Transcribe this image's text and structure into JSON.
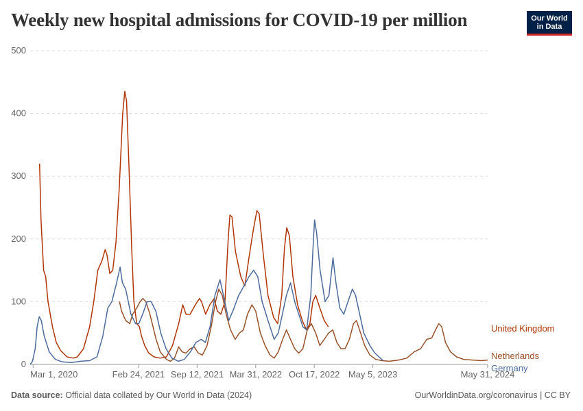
{
  "header": {
    "title": "Weekly new hospital admissions for COVID-19 per million",
    "logo_line1": "Our World",
    "logo_line2": "in Data"
  },
  "footer": {
    "source_label": "Data source:",
    "source_text": " Official data collated by Our World in Data (2024)",
    "right_text": "OurWorldinData.org/coronavirus | CC BY"
  },
  "chart_data": {
    "type": "line",
    "title": "Weekly new hospital admissions for COVID-19 per million",
    "xlabel": "",
    "ylabel": "",
    "ylim": [
      0,
      500
    ],
    "xlim": [
      "2020-02-20",
      "2024-05-31"
    ],
    "grid": true,
    "y_ticks": [
      "0",
      "100",
      "200",
      "300",
      "400",
      "500"
    ],
    "x_ticks": [
      {
        "date": "2020-03-01",
        "label": "Mar 1, 2020"
      },
      {
        "date": "2021-02-24",
        "label": "Feb 24, 2021"
      },
      {
        "date": "2021-09-12",
        "label": "Sep 12, 2021"
      },
      {
        "date": "2022-03-31",
        "label": "Mar 31, 2022"
      },
      {
        "date": "2022-10-17",
        "label": "Oct 17, 2022"
      },
      {
        "date": "2023-05-05",
        "label": "May 5, 2023"
      },
      {
        "date": "2024-05-31",
        "label": "May 31, 2024"
      }
    ],
    "series": [
      {
        "name": "United Kingdom",
        "color": "#b13507",
        "points": [
          [
            "2020-03-23",
            320
          ],
          [
            "2020-03-28",
            230
          ],
          [
            "2020-04-06",
            150
          ],
          [
            "2020-04-13",
            140
          ],
          [
            "2020-04-21",
            100
          ],
          [
            "2020-05-06",
            60
          ],
          [
            "2020-05-19",
            35
          ],
          [
            "2020-06-03",
            22
          ],
          [
            "2020-06-25",
            12
          ],
          [
            "2020-07-16",
            10
          ],
          [
            "2020-07-30",
            12
          ],
          [
            "2020-08-20",
            25
          ],
          [
            "2020-09-10",
            60
          ],
          [
            "2020-09-24",
            100
          ],
          [
            "2020-10-08",
            150
          ],
          [
            "2020-10-22",
            165
          ],
          [
            "2020-11-02",
            183
          ],
          [
            "2020-11-08",
            175
          ],
          [
            "2020-11-18",
            145
          ],
          [
            "2020-11-28",
            150
          ],
          [
            "2020-12-09",
            195
          ],
          [
            "2020-12-20",
            280
          ],
          [
            "2021-01-01",
            400
          ],
          [
            "2021-01-08",
            435
          ],
          [
            "2021-01-14",
            420
          ],
          [
            "2021-01-22",
            320
          ],
          [
            "2021-02-01",
            180
          ],
          [
            "2021-02-08",
            100
          ],
          [
            "2021-02-18",
            65
          ],
          [
            "2021-02-27",
            60
          ],
          [
            "2021-03-06",
            45
          ],
          [
            "2021-03-17",
            30
          ],
          [
            "2021-03-31",
            18
          ],
          [
            "2021-04-18",
            12
          ],
          [
            "2021-05-09",
            10
          ],
          [
            "2021-05-30",
            12
          ],
          [
            "2021-06-20",
            30
          ],
          [
            "2021-07-11",
            65
          ],
          [
            "2021-07-25",
            95
          ],
          [
            "2021-08-05",
            80
          ],
          [
            "2021-08-19",
            80
          ],
          [
            "2021-09-06",
            95
          ],
          [
            "2021-09-20",
            105
          ],
          [
            "2021-09-27",
            100
          ],
          [
            "2021-10-11",
            80
          ],
          [
            "2021-10-25",
            95
          ],
          [
            "2021-11-09",
            105
          ],
          [
            "2021-11-20",
            85
          ],
          [
            "2021-12-02",
            80
          ],
          [
            "2021-12-16",
            100
          ],
          [
            "2021-12-27",
            200
          ],
          [
            "2022-01-02",
            238
          ],
          [
            "2022-01-09",
            235
          ],
          [
            "2022-01-21",
            180
          ],
          [
            "2022-02-08",
            140
          ],
          [
            "2022-02-22",
            125
          ],
          [
            "2022-03-08",
            170
          ],
          [
            "2022-03-23",
            215
          ],
          [
            "2022-04-04",
            245
          ],
          [
            "2022-04-12",
            240
          ],
          [
            "2022-04-26",
            175
          ],
          [
            "2022-05-12",
            110
          ],
          [
            "2022-05-31",
            75
          ],
          [
            "2022-06-14",
            65
          ],
          [
            "2022-06-28",
            110
          ],
          [
            "2022-07-07",
            185
          ],
          [
            "2022-07-15",
            218
          ],
          [
            "2022-07-24",
            205
          ],
          [
            "2022-08-05",
            140
          ],
          [
            "2022-08-21",
            95
          ],
          [
            "2022-09-06",
            70
          ],
          [
            "2022-09-20",
            55
          ],
          [
            "2022-10-02",
            65
          ],
          [
            "2022-10-12",
            100
          ],
          [
            "2022-10-22",
            110
          ],
          [
            "2022-11-05",
            90
          ],
          [
            "2022-11-20",
            70
          ],
          [
            "2022-12-04",
            60
          ]
        ]
      },
      {
        "name": "Netherlands",
        "color": "#9a5129",
        "points": [
          [
            "2020-12-21",
            100
          ],
          [
            "2020-12-28",
            85
          ],
          [
            "2021-01-11",
            70
          ],
          [
            "2021-01-25",
            65
          ],
          [
            "2021-02-04",
            80
          ],
          [
            "2021-02-18",
            90
          ],
          [
            "2021-03-01",
            100
          ],
          [
            "2021-03-11",
            105
          ],
          [
            "2021-03-21",
            100
          ],
          [
            "2021-04-04",
            80
          ],
          [
            "2021-04-25",
            40
          ],
          [
            "2021-05-09",
            20
          ],
          [
            "2021-05-30",
            8
          ],
          [
            "2021-06-13",
            5
          ],
          [
            "2021-06-27",
            10
          ],
          [
            "2021-07-11",
            28
          ],
          [
            "2021-07-23",
            20
          ],
          [
            "2021-08-05",
            18
          ],
          [
            "2021-08-19",
            25
          ],
          [
            "2021-09-02",
            28
          ],
          [
            "2021-09-16",
            18
          ],
          [
            "2021-09-30",
            15
          ],
          [
            "2021-10-16",
            30
          ],
          [
            "2021-10-30",
            60
          ],
          [
            "2021-11-14",
            100
          ],
          [
            "2021-11-25",
            120
          ],
          [
            "2021-12-07",
            110
          ],
          [
            "2021-12-20",
            80
          ],
          [
            "2022-01-04",
            55
          ],
          [
            "2022-01-20",
            40
          ],
          [
            "2022-02-03",
            50
          ],
          [
            "2022-02-17",
            55
          ],
          [
            "2022-03-03",
            80
          ],
          [
            "2022-03-18",
            95
          ],
          [
            "2022-03-31",
            85
          ],
          [
            "2022-04-16",
            50
          ],
          [
            "2022-05-02",
            30
          ],
          [
            "2022-05-19",
            15
          ],
          [
            "2022-06-02",
            10
          ],
          [
            "2022-06-16",
            20
          ],
          [
            "2022-07-01",
            40
          ],
          [
            "2022-07-14",
            55
          ],
          [
            "2022-07-28",
            40
          ],
          [
            "2022-08-11",
            25
          ],
          [
            "2022-08-25",
            18
          ],
          [
            "2022-09-08",
            25
          ],
          [
            "2022-09-23",
            55
          ],
          [
            "2022-10-07",
            65
          ],
          [
            "2022-10-22",
            50
          ],
          [
            "2022-11-05",
            30
          ],
          [
            "2022-11-20",
            40
          ],
          [
            "2022-12-05",
            50
          ],
          [
            "2022-12-19",
            55
          ],
          [
            "2023-01-02",
            35
          ],
          [
            "2023-01-16",
            25
          ],
          [
            "2023-01-30",
            25
          ],
          [
            "2023-02-14",
            40
          ],
          [
            "2023-02-28",
            65
          ],
          [
            "2023-03-10",
            70
          ],
          [
            "2023-03-24",
            50
          ],
          [
            "2023-04-07",
            30
          ],
          [
            "2023-04-25",
            15
          ],
          [
            "2023-05-15",
            8
          ],
          [
            "2023-06-05",
            6
          ],
          [
            "2023-07-01",
            5
          ],
          [
            "2023-08-01",
            7
          ],
          [
            "2023-08-29",
            10
          ],
          [
            "2023-09-23",
            20
          ],
          [
            "2023-10-15",
            25
          ],
          [
            "2023-11-05",
            40
          ],
          [
            "2023-11-22",
            42
          ],
          [
            "2023-12-05",
            55
          ],
          [
            "2023-12-16",
            65
          ],
          [
            "2023-12-26",
            60
          ],
          [
            "2024-01-08",
            35
          ],
          [
            "2024-01-25",
            20
          ],
          [
            "2024-02-15",
            12
          ],
          [
            "2024-03-10",
            8
          ],
          [
            "2024-04-10",
            7
          ],
          [
            "2024-05-10",
            6
          ],
          [
            "2024-05-31",
            7
          ]
        ]
      },
      {
        "name": "Germany",
        "color": "#4c6a9c",
        "points": [
          [
            "2020-02-20",
            0
          ],
          [
            "2020-02-28",
            5
          ],
          [
            "2020-03-08",
            25
          ],
          [
            "2020-03-15",
            60
          ],
          [
            "2020-03-22",
            76
          ],
          [
            "2020-03-29",
            70
          ],
          [
            "2020-04-08",
            45
          ],
          [
            "2020-04-25",
            20
          ],
          [
            "2020-05-16",
            8
          ],
          [
            "2020-06-09",
            4
          ],
          [
            "2020-07-09",
            3
          ],
          [
            "2020-08-10",
            5
          ],
          [
            "2020-09-10",
            6
          ],
          [
            "2020-10-05",
            12
          ],
          [
            "2020-10-25",
            45
          ],
          [
            "2020-11-11",
            90
          ],
          [
            "2020-11-25",
            100
          ],
          [
            "2020-12-11",
            130
          ],
          [
            "2020-12-23",
            155
          ],
          [
            "2020-12-31",
            130
          ],
          [
            "2021-01-11",
            120
          ],
          [
            "2021-01-29",
            80
          ],
          [
            "2021-02-14",
            65
          ],
          [
            "2021-02-25",
            65
          ],
          [
            "2021-03-10",
            80
          ],
          [
            "2021-03-25",
            100
          ],
          [
            "2021-04-08",
            100
          ],
          [
            "2021-04-24",
            85
          ],
          [
            "2021-05-11",
            50
          ],
          [
            "2021-05-29",
            25
          ],
          [
            "2021-06-18",
            10
          ],
          [
            "2021-07-10",
            5
          ],
          [
            "2021-07-30",
            8
          ],
          [
            "2021-08-20",
            20
          ],
          [
            "2021-09-08",
            35
          ],
          [
            "2021-09-26",
            40
          ],
          [
            "2021-10-10",
            35
          ],
          [
            "2021-10-26",
            60
          ],
          [
            "2021-11-12",
            110
          ],
          [
            "2021-11-29",
            135
          ],
          [
            "2021-12-11",
            110
          ],
          [
            "2021-12-29",
            70
          ],
          [
            "2022-01-12",
            85
          ],
          [
            "2022-02-01",
            110
          ],
          [
            "2022-02-19",
            125
          ],
          [
            "2022-03-08",
            140
          ],
          [
            "2022-03-24",
            150
          ],
          [
            "2022-04-07",
            140
          ],
          [
            "2022-04-22",
            100
          ],
          [
            "2022-05-12",
            70
          ],
          [
            "2022-06-02",
            40
          ],
          [
            "2022-06-16",
            50
          ],
          [
            "2022-06-30",
            80
          ],
          [
            "2022-07-14",
            110
          ],
          [
            "2022-07-28",
            130
          ],
          [
            "2022-08-11",
            100
          ],
          [
            "2022-08-25",
            80
          ],
          [
            "2022-09-08",
            60
          ],
          [
            "2022-09-21",
            55
          ],
          [
            "2022-10-05",
            110
          ],
          [
            "2022-10-12",
            180
          ],
          [
            "2022-10-18",
            230
          ],
          [
            "2022-10-25",
            210
          ],
          [
            "2022-11-06",
            150
          ],
          [
            "2022-11-23",
            100
          ],
          [
            "2022-12-06",
            110
          ],
          [
            "2022-12-20",
            170
          ],
          [
            "2022-12-30",
            130
          ],
          [
            "2023-01-12",
            90
          ],
          [
            "2023-01-26",
            80
          ],
          [
            "2023-02-09",
            100
          ],
          [
            "2023-02-24",
            120
          ],
          [
            "2023-03-07",
            110
          ],
          [
            "2023-03-21",
            80
          ],
          [
            "2023-04-04",
            50
          ],
          [
            "2023-04-25",
            30
          ],
          [
            "2023-05-12",
            18
          ],
          [
            "2023-05-26",
            12
          ],
          [
            "2023-06-09",
            6
          ]
        ]
      }
    ]
  }
}
